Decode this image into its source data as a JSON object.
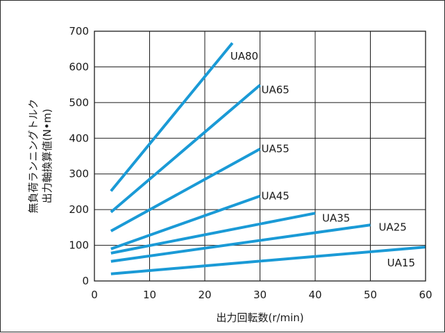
{
  "chart_data": {
    "type": "line",
    "xlabel": "出力回転数(r/min)",
    "ylabel_lines": [
      "無負荷ランニングトルク",
      "出力軸換算値(N•m)"
    ],
    "xlim": [
      0,
      60
    ],
    "ylim": [
      0,
      700
    ],
    "x_ticks": [
      0,
      10,
      20,
      30,
      40,
      50,
      60
    ],
    "y_ticks": [
      0,
      100,
      200,
      300,
      400,
      500,
      600,
      700
    ],
    "grid": true,
    "line_color": "#1a9ad6",
    "series": [
      {
        "name": "UA80",
        "points": [
          [
            3,
            252
          ],
          [
            25,
            667
          ]
        ]
      },
      {
        "name": "UA65",
        "points": [
          [
            3,
            193
          ],
          [
            30,
            549
          ]
        ]
      },
      {
        "name": "UA55",
        "points": [
          [
            3,
            140
          ],
          [
            30,
            370
          ]
        ]
      },
      {
        "name": "UA45",
        "points": [
          [
            3,
            90
          ],
          [
            30,
            238
          ]
        ]
      },
      {
        "name": "UA35",
        "points": [
          [
            3,
            78
          ],
          [
            40,
            190
          ]
        ]
      },
      {
        "name": "UA25",
        "points": [
          [
            3,
            55
          ],
          [
            50,
            157
          ]
        ]
      },
      {
        "name": "UA15",
        "points": [
          [
            3,
            20
          ],
          [
            60,
            95
          ]
        ]
      }
    ]
  }
}
